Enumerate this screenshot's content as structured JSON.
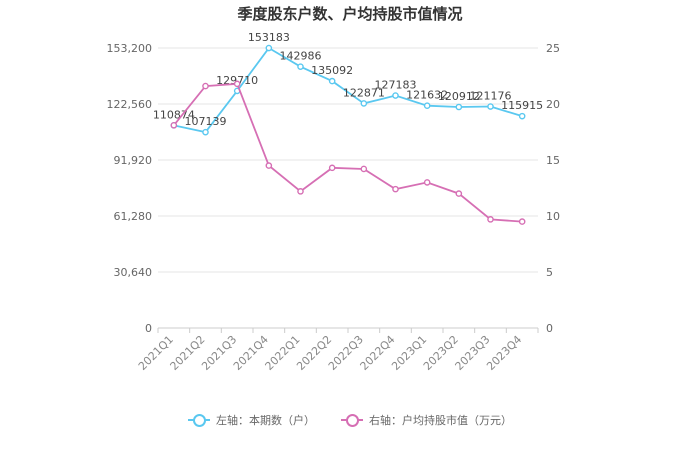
{
  "chart_data": {
    "type": "line",
    "title": "季度股东户数、户均持股市值情况",
    "categories": [
      "2021Q1",
      "2021Q2",
      "2021Q3",
      "2021Q4",
      "2022Q1",
      "2022Q2",
      "2022Q3",
      "2022Q4",
      "2023Q1",
      "2023Q2",
      "2023Q3",
      "2023Q4"
    ],
    "series": [
      {
        "name": "左轴：本期数（户）",
        "axis": "left",
        "color": "#5ac8f0",
        "values": [
          110874,
          107139,
          129710,
          153183,
          142986,
          135092,
          122871,
          127183,
          121632,
          120912,
          121176,
          115915
        ],
        "labels": [
          "110874",
          "107139",
          "129710",
          "153183",
          "142986",
          "135092",
          "122871",
          "127183",
          "121632",
          "120912",
          "121176",
          "115915"
        ]
      },
      {
        "name": "右轴：户均持股市值（万元）",
        "axis": "right",
        "color": "#d66fb4",
        "values": [
          18.1,
          21.6,
          21.8,
          14.5,
          12.2,
          14.3,
          14.2,
          12.4,
          13.0,
          12.0,
          9.7,
          9.5
        ]
      }
    ],
    "y_left": {
      "min": 0,
      "max": 153200,
      "ticks": [
        0,
        30640,
        61280,
        91920,
        122560,
        153200
      ],
      "tick_labels": [
        "0",
        "30,640",
        "61,280",
        "91,920",
        "122,560",
        "153,200"
      ]
    },
    "y_right": {
      "min": 0,
      "max": 25,
      "ticks": [
        0,
        5,
        10,
        15,
        20,
        25
      ],
      "tick_labels": [
        "0",
        "5",
        "10",
        "15",
        "20",
        "25"
      ]
    },
    "grid": true,
    "legend_position": "bottom"
  }
}
